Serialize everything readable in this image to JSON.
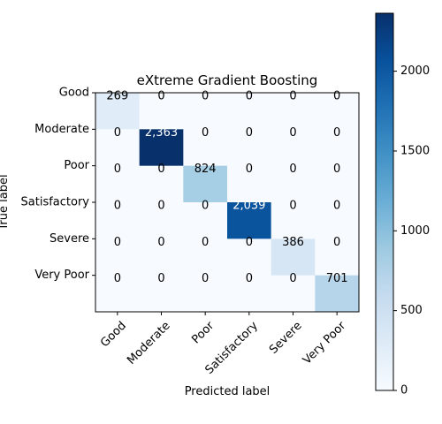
{
  "chart_data": {
    "type": "heatmap",
    "title": "eXtreme Gradient Boosting",
    "xlabel": "Predicted label",
    "ylabel": "True label",
    "x_categories": [
      "Good",
      "Moderate",
      "Poor",
      "Satisfactory",
      "Severe",
      "Very Poor"
    ],
    "y_categories": [
      "Good",
      "Moderate",
      "Poor",
      "Satisfactory",
      "Severe",
      "Very Poor"
    ],
    "matrix": [
      [
        269,
        0,
        0,
        0,
        0,
        0
      ],
      [
        0,
        2363,
        0,
        0,
        0,
        0
      ],
      [
        0,
        0,
        824,
        0,
        0,
        0
      ],
      [
        0,
        0,
        0,
        2039,
        0,
        0
      ],
      [
        0,
        0,
        0,
        0,
        386,
        0
      ],
      [
        0,
        0,
        0,
        0,
        0,
        701
      ]
    ],
    "cell_labels": [
      [
        "269",
        "0",
        "0",
        "0",
        "0",
        "0"
      ],
      [
        "0",
        "2,363",
        "0",
        "0",
        "0",
        "0"
      ],
      [
        "0",
        "0",
        "824",
        "0",
        "0",
        "0"
      ],
      [
        "0",
        "0",
        "0",
        "2,039",
        "0",
        "0"
      ],
      [
        "0",
        "0",
        "0",
        "0",
        "386",
        "0"
      ],
      [
        "0",
        "0",
        "0",
        "0",
        "0",
        "701"
      ]
    ],
    "colormap": "Blues",
    "colorbar": {
      "range": [
        0,
        2363
      ],
      "ticks": [
        0,
        500,
        1000,
        1500,
        2000
      ],
      "tick_labels": [
        "0",
        "500",
        "1000",
        "1500",
        "2000"
      ],
      "placement": "right"
    },
    "x_tick_rotation_deg": 45,
    "grid": false
  }
}
